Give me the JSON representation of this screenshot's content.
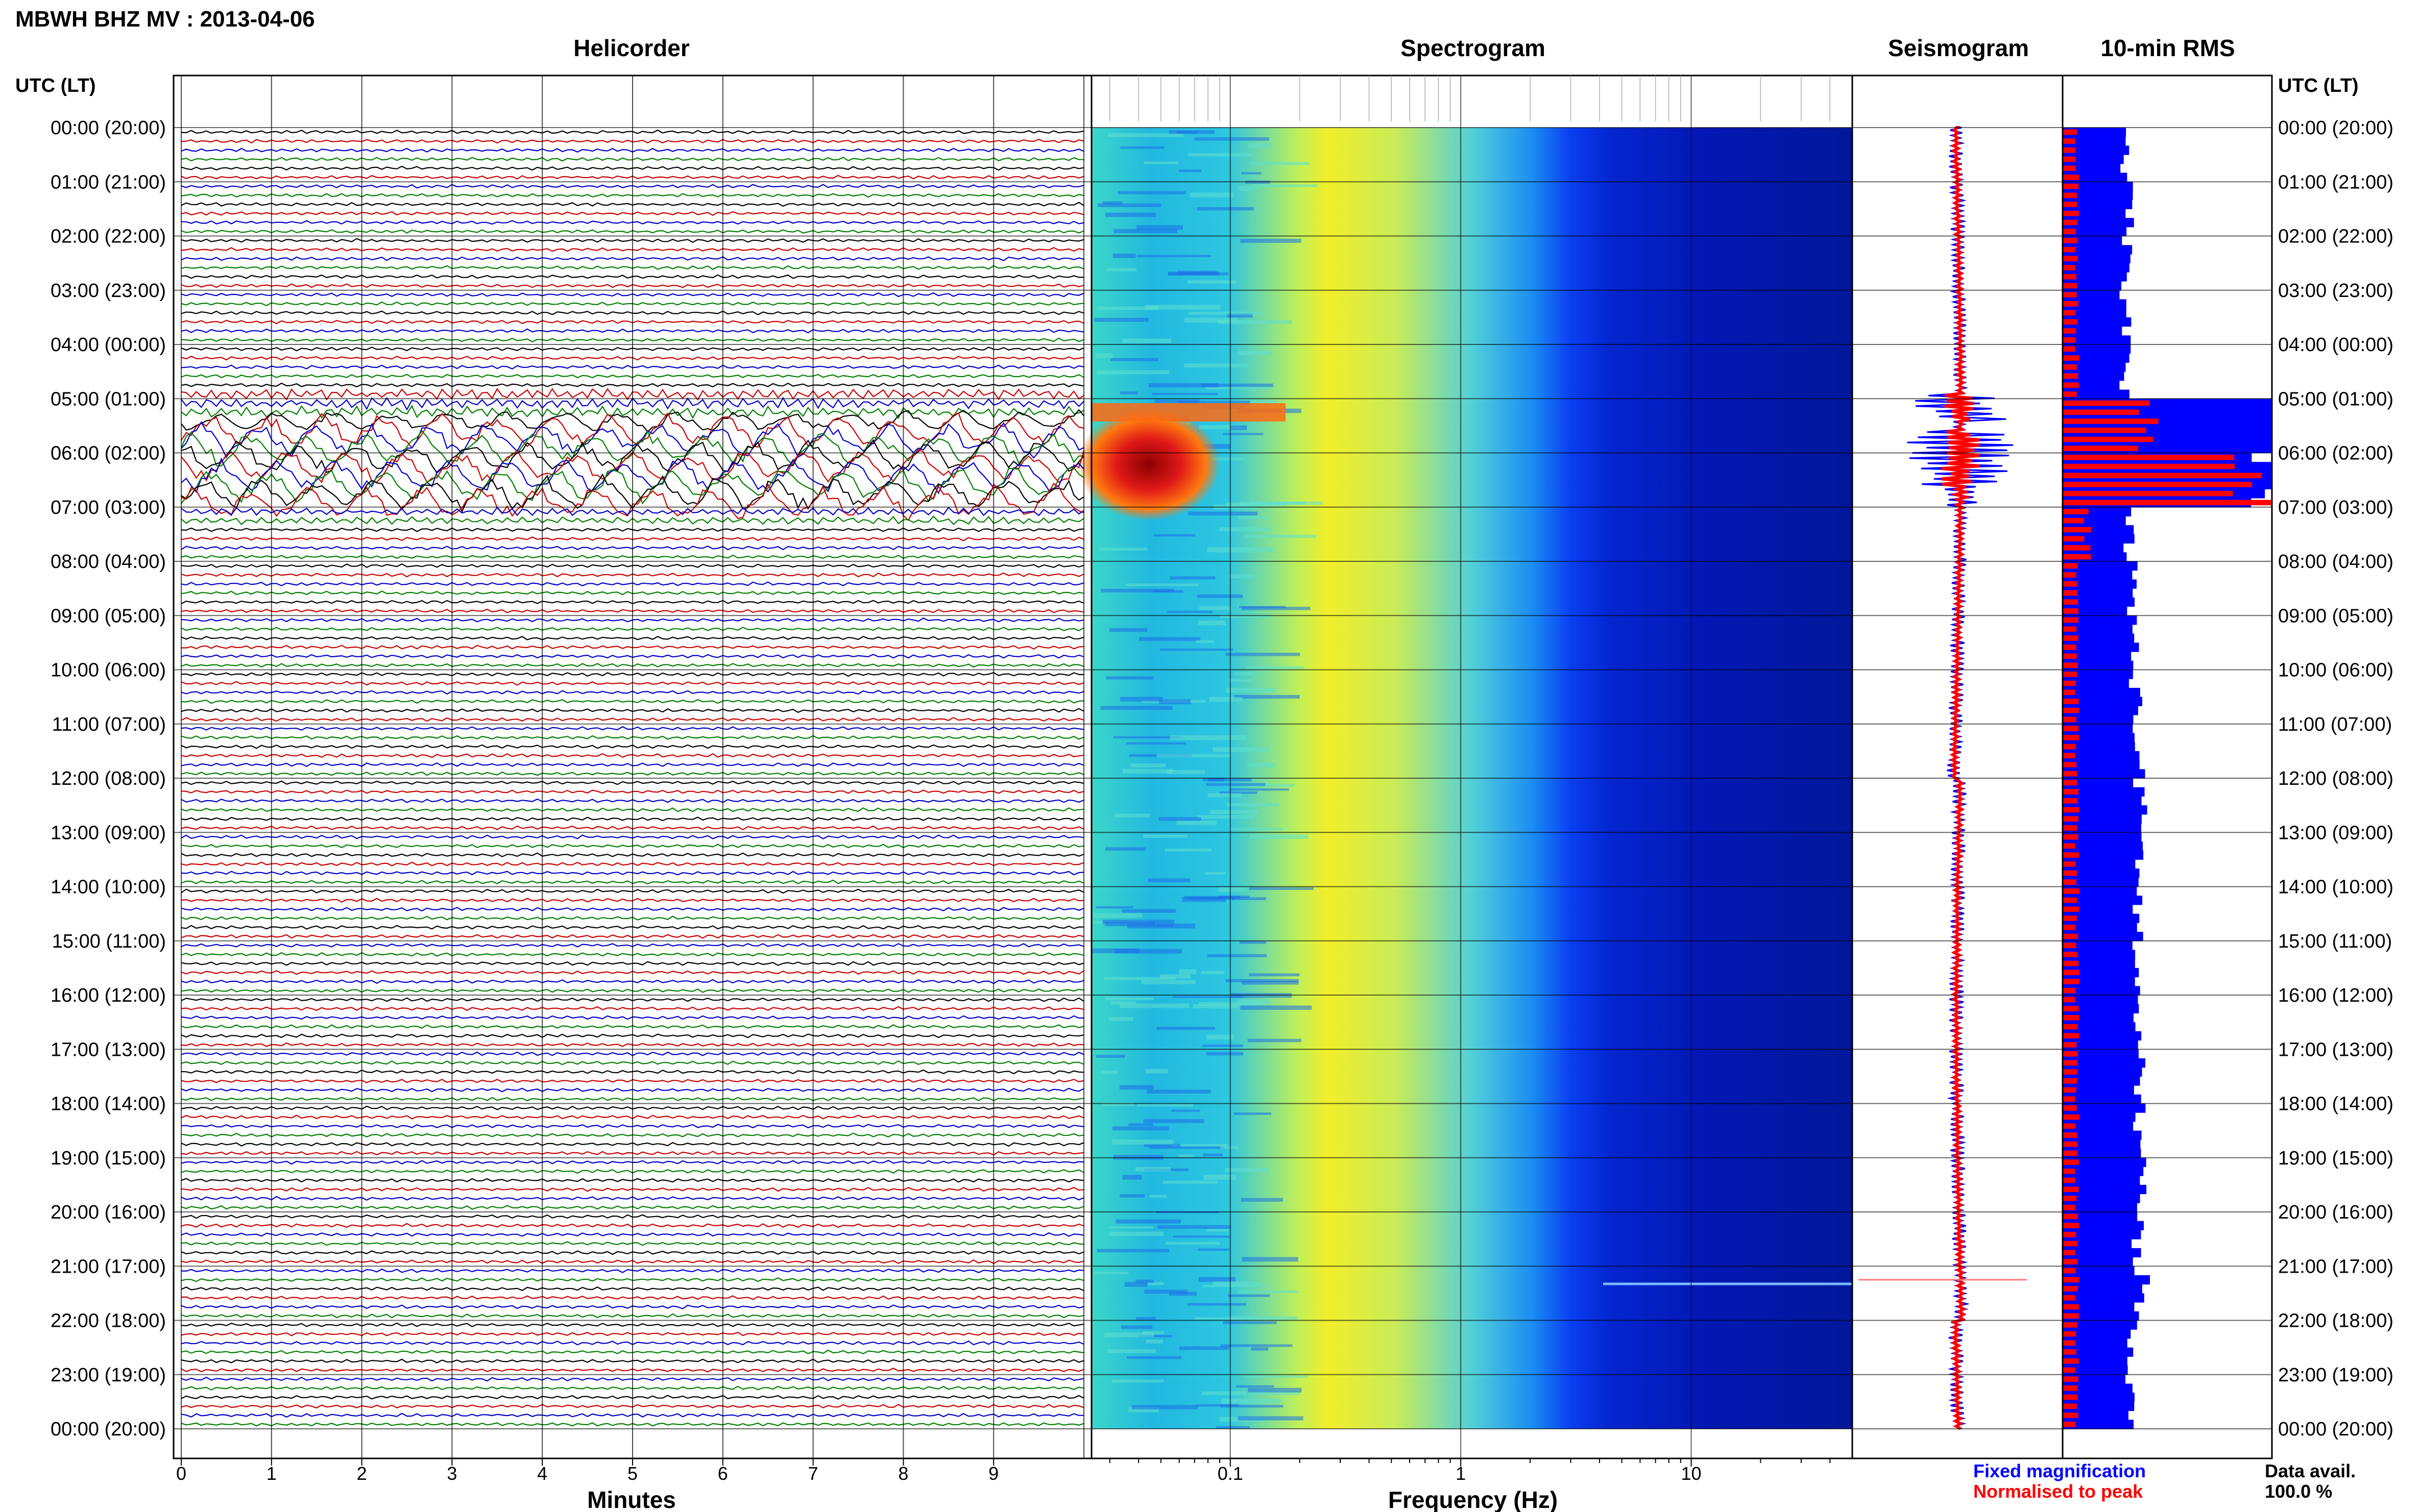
{
  "title": "MBWH BHZ MV : 2013-04-06",
  "panel_titles": {
    "helicorder": "Helicorder",
    "spectrogram": "Spectrogram",
    "seismogram": "Seismogram",
    "rms": "10-min RMS"
  },
  "time_axis_header": "UTC (LT)",
  "time_labels": [
    "00:00 (20:00)",
    "01:00 (21:00)",
    "02:00 (22:00)",
    "03:00 (23:00)",
    "04:00 (00:00)",
    "05:00 (01:00)",
    "06:00 (02:00)",
    "07:00 (03:00)",
    "08:00 (04:00)",
    "09:00 (05:00)",
    "10:00 (06:00)",
    "11:00 (07:00)",
    "12:00 (08:00)",
    "13:00 (09:00)",
    "14:00 (10:00)",
    "15:00 (11:00)",
    "16:00 (12:00)",
    "17:00 (13:00)",
    "18:00 (14:00)",
    "19:00 (15:00)",
    "20:00 (16:00)",
    "21:00 (17:00)",
    "22:00 (18:00)",
    "23:00 (19:00)",
    "00:00 (20:00)"
  ],
  "minutes_ticks": [
    "0",
    "1",
    "2",
    "3",
    "4",
    "5",
    "6",
    "7",
    "8",
    "9"
  ],
  "minutes_label": "Minutes",
  "freq_ticks": [
    "0.1",
    "1",
    "10"
  ],
  "freq_label": "Frequency (Hz)",
  "legend": {
    "fixed": "Fixed magnification",
    "normalised": "Normalised to peak",
    "fixed_color": "#0000ff",
    "normalised_color": "#ff0000"
  },
  "data_avail": {
    "label": "Data avail.",
    "value": "100.0 %"
  },
  "colors": {
    "trace_cycle": [
      "#000000",
      "#cc0000",
      "#0000cc",
      "#008000"
    ],
    "spectrogram_colormap": [
      "#00008b",
      "#0000ff",
      "#00bfff",
      "#40e0d0",
      "#ffff00",
      "#ff8c00",
      "#ff0000",
      "#8b0000"
    ]
  },
  "chart_data": {
    "type": "heatmap",
    "panels": [
      "Helicorder",
      "Spectrogram",
      "Seismogram",
      "10-min RMS"
    ],
    "time_range_utc": [
      "2013-04-06 00:00",
      "2013-04-07 00:00"
    ],
    "helicorder": {
      "minutes_per_line": 10,
      "x_range_min": [
        0,
        10
      ],
      "xlabel": "Minutes"
    },
    "spectrogram": {
      "x_scale": "log",
      "x_range_hz": [
        0.025,
        50
      ],
      "xlabel": "Frequency (Hz)",
      "notable": "strong low-frequency energy (0.03-0.2 Hz) around 05:00-07:00 UTC; weak line near 21:00 UTC"
    },
    "rms_10min": {
      "hours": [
        0,
        1,
        2,
        3,
        4,
        5,
        6,
        7,
        8,
        9,
        10,
        11,
        12,
        13,
        14,
        15,
        16,
        17,
        18,
        19,
        20,
        21,
        22,
        23
      ],
      "fixed_magnification_rel": [
        0.29,
        0.31,
        0.31,
        0.3,
        0.3,
        1.0,
        1.0,
        0.32,
        0.33,
        0.34,
        0.35,
        0.36,
        0.37,
        0.37,
        0.36,
        0.35,
        0.36,
        0.36,
        0.37,
        0.37,
        0.36,
        0.38,
        0.34,
        0.32
      ],
      "normalised_to_peak_rel": [
        0.07,
        0.07,
        0.07,
        0.07,
        0.07,
        0.42,
        0.95,
        0.12,
        0.07,
        0.07,
        0.07,
        0.07,
        0.07,
        0.07,
        0.07,
        0.07,
        0.07,
        0.07,
        0.07,
        0.07,
        0.07,
        0.07,
        0.07,
        0.07
      ]
    },
    "data_availability_percent": 100.0
  }
}
